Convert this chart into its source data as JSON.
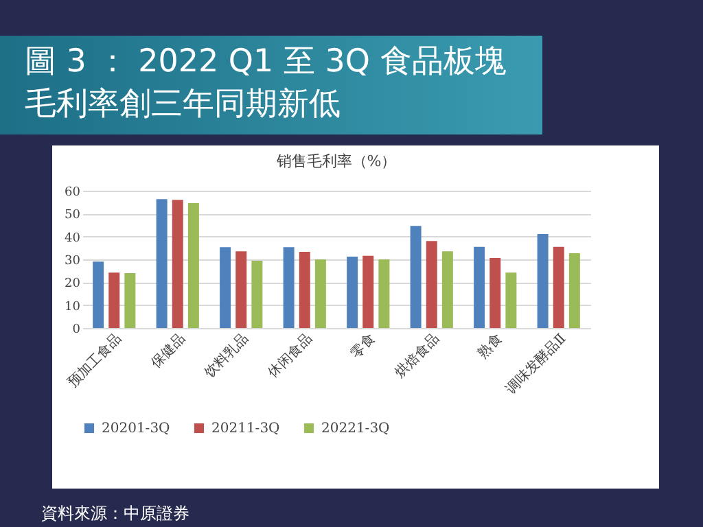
{
  "chart_data": {
    "type": "bar",
    "title": "圖 3 ： 2022 Q1 至 3Q 食品板塊毛利率創三年同期新低",
    "subtitle": "销售毛利率（%）",
    "categories": [
      "预加工食品",
      "保健品",
      "饮料乳品",
      "休闲食品",
      "零食",
      "烘焙食品",
      "熟食",
      "调味发酵品Ⅱ"
    ],
    "series": [
      {
        "name": "20201-3Q",
        "color": "#4f81bd",
        "values": [
          29,
          56.3,
          35.3,
          35.3,
          31.2,
          44.6,
          35.5,
          41.1
        ]
      },
      {
        "name": "20211-3Q",
        "color": "#c0504d",
        "values": [
          24.2,
          56,
          33.5,
          33.3,
          31.6,
          38,
          30.6,
          35.5
        ]
      },
      {
        "name": "20221-3Q",
        "color": "#9bbb59",
        "values": [
          24,
          54.6,
          29.4,
          30,
          30,
          33.5,
          24.2,
          32.7
        ]
      }
    ],
    "ylim": [
      0,
      60
    ],
    "yticks": [
      0,
      10,
      20,
      30,
      40,
      50,
      60
    ],
    "grid": "y",
    "legend": "bottom",
    "annotations": [
      "資料來源：中原證券"
    ]
  }
}
